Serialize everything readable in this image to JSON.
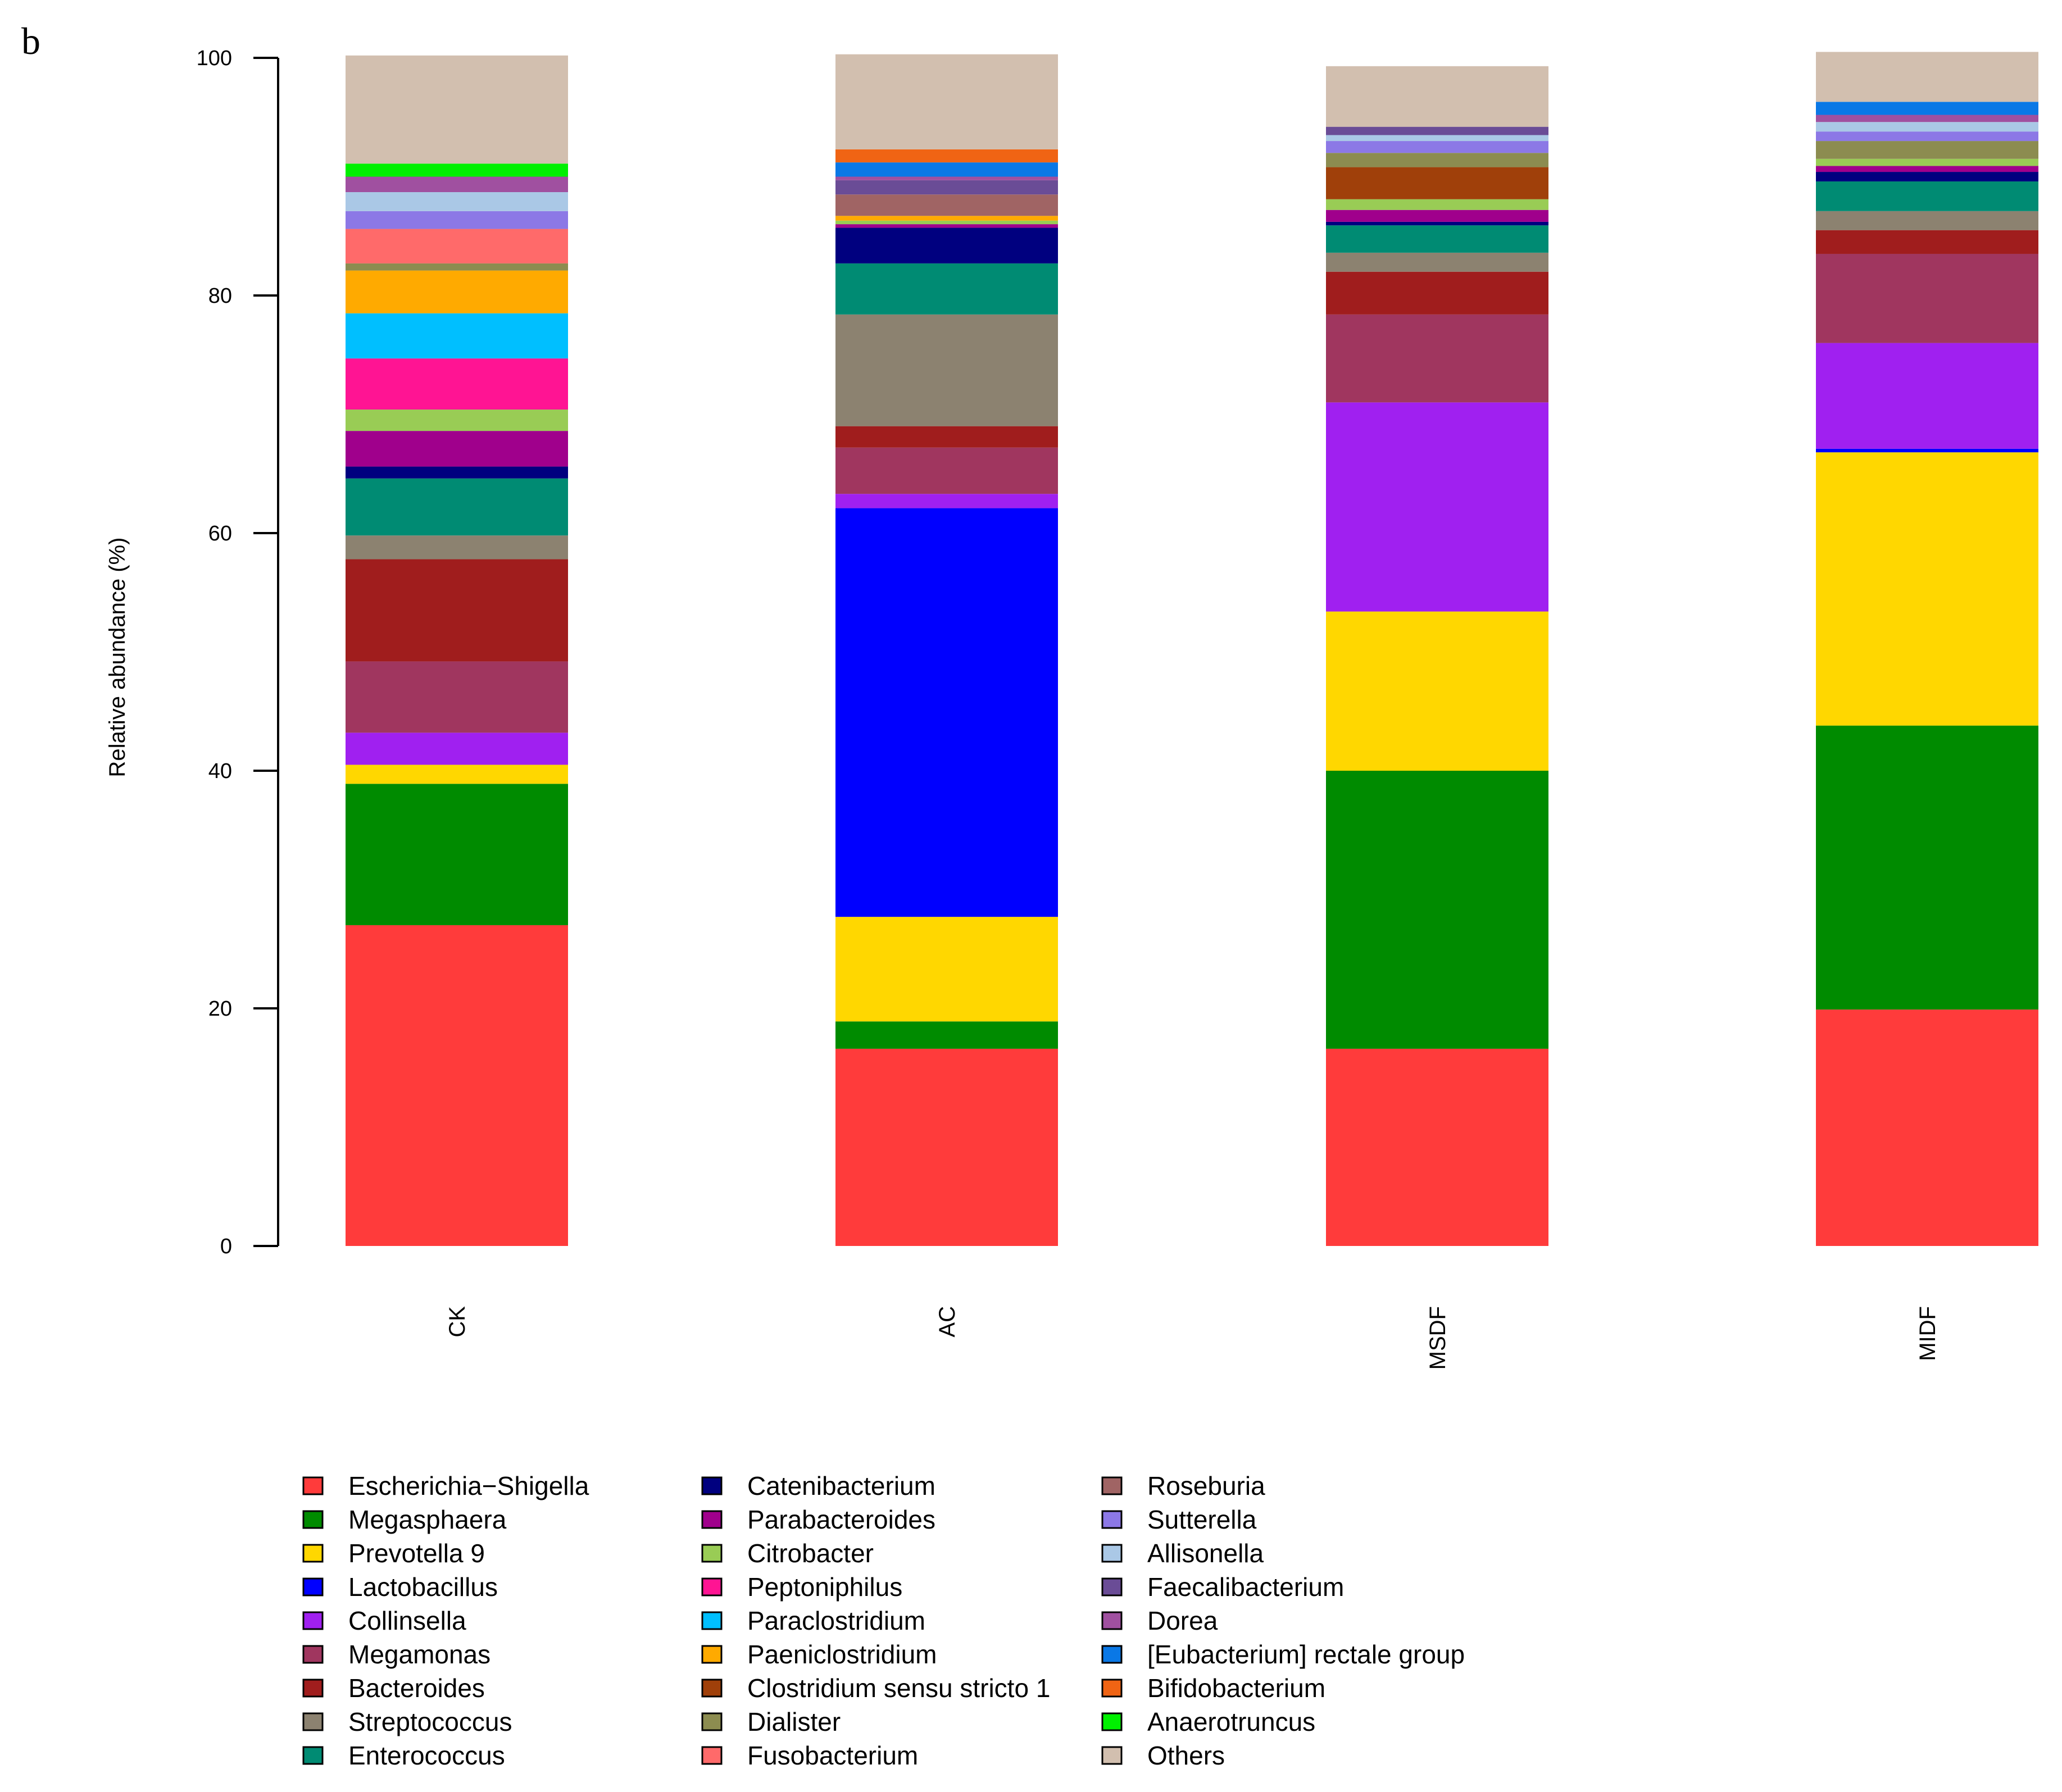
{
  "chart_data": {
    "type": "bar",
    "stacked": true,
    "panel_label": "b",
    "title": "",
    "xlabel": "",
    "ylabel": "Relative abundance (%)",
    "ylim": [
      0,
      100
    ],
    "yticks": [
      0,
      20,
      40,
      60,
      80,
      100
    ],
    "categories": [
      "CK",
      "AC",
      "MSDF",
      "MIDF"
    ],
    "legend_position": "bottom-left",
    "legend_columns": 3,
    "series": [
      {
        "name": "Escherichia−Shigella",
        "color": "#FF3B3B",
        "values": [
          27.0,
          16.6,
          16.6,
          19.9
        ]
      },
      {
        "name": "Megasphaera",
        "color": "#008B00",
        "values": [
          11.9,
          2.3,
          23.4,
          23.9
        ]
      },
      {
        "name": "Prevotella 9",
        "color": "#FFD700",
        "values": [
          1.6,
          8.8,
          13.4,
          23.0
        ]
      },
      {
        "name": "Lactobacillus",
        "color": "#0000FF",
        "values": [
          0.0,
          34.4,
          0.0,
          0.3
        ]
      },
      {
        "name": "Collinsella",
        "color": "#A020F0",
        "values": [
          2.7,
          1.2,
          17.6,
          8.9
        ]
      },
      {
        "name": "Megamonas",
        "color": "#A0365F",
        "values": [
          6.0,
          3.9,
          7.4,
          7.5
        ]
      },
      {
        "name": "Bacteroides",
        "color": "#A01D1D",
        "values": [
          8.6,
          1.8,
          3.6,
          2.0
        ]
      },
      {
        "name": "Streptococcus",
        "color": "#8C8270",
        "values": [
          2.0,
          9.4,
          1.6,
          1.6
        ]
      },
      {
        "name": "Enterococcus",
        "color": "#008B73",
        "values": [
          4.8,
          4.3,
          2.3,
          2.5
        ]
      },
      {
        "name": "Catenibacterium",
        "color": "#00007F",
        "values": [
          1.0,
          3.0,
          0.3,
          0.8
        ]
      },
      {
        "name": "Parabacteroides",
        "color": "#A0008C",
        "values": [
          3.0,
          0.3,
          1.0,
          0.5
        ]
      },
      {
        "name": "Citrobacter",
        "color": "#99CC55",
        "values": [
          1.8,
          0.3,
          0.9,
          0.6
        ]
      },
      {
        "name": "Peptoniphilus",
        "color": "#FF1493",
        "values": [
          4.3,
          0.0,
          0.0,
          0.0
        ]
      },
      {
        "name": "Paraclostridium",
        "color": "#00BFFF",
        "values": [
          3.8,
          0.0,
          0.0,
          0.0
        ]
      },
      {
        "name": "Paeniclostridium",
        "color": "#FFAA00",
        "values": [
          3.6,
          0.4,
          0.0,
          0.0
        ]
      },
      {
        "name": "Clostridium sensu stricto 1",
        "color": "#A0400A",
        "values": [
          0.0,
          0.0,
          2.7,
          0.0
        ]
      },
      {
        "name": "Dialister",
        "color": "#8C8C50",
        "values": [
          0.6,
          0.0,
          1.2,
          1.5
        ]
      },
      {
        "name": "Fusobacterium",
        "color": "#FF6A6A",
        "values": [
          2.9,
          0.0,
          0.0,
          0.0
        ]
      },
      {
        "name": "Roseburia",
        "color": "#A06464",
        "values": [
          0.0,
          1.8,
          0.0,
          0.0
        ]
      },
      {
        "name": "Sutterella",
        "color": "#8C78E6",
        "values": [
          1.5,
          0.0,
          1.0,
          0.8
        ]
      },
      {
        "name": "Allisonella",
        "color": "#AAC8E6",
        "values": [
          1.6,
          0.0,
          0.5,
          0.8
        ]
      },
      {
        "name": "Faecalibacterium",
        "color": "#6A4C96",
        "values": [
          0.0,
          1.2,
          0.7,
          0.0
        ]
      },
      {
        "name": "Dorea",
        "color": "#A050A0",
        "values": [
          1.3,
          0.3,
          0.0,
          0.6
        ]
      },
      {
        "name": "[Eubacterium] rectale group",
        "color": "#0A78E6",
        "values": [
          0.0,
          1.2,
          0.0,
          1.1
        ]
      },
      {
        "name": "Bifidobacterium",
        "color": "#F06414",
        "values": [
          0.0,
          1.1,
          0.0,
          0.0
        ]
      },
      {
        "name": "Anaerotruncus",
        "color": "#00F000",
        "values": [
          1.1,
          0.0,
          0.0,
          0.0
        ]
      },
      {
        "name": "Others",
        "color": "#D2BFAF",
        "values": [
          9.1,
          8.0,
          5.1,
          4.2
        ]
      }
    ]
  }
}
